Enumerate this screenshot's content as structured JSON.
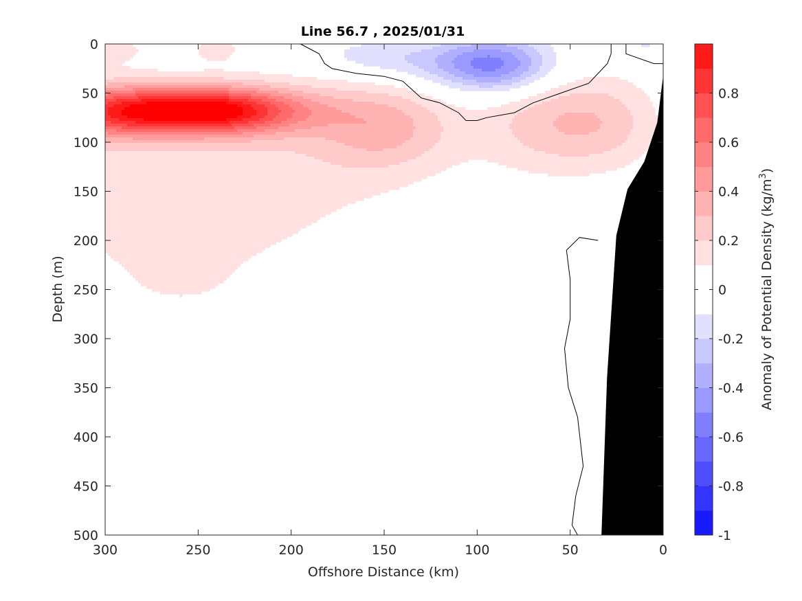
{
  "chart_data": {
    "type": "contour",
    "title": "Line 56.7 , 2025/01/31",
    "xlabel": "Offshore Distance (km)",
    "ylabel": "Depth (m)",
    "colorbar_label": "Anomaly of Potential Density (kg/m",
    "colorbar_label_sup": "3",
    "colorbar_label_close": ")",
    "xlim": [
      300,
      0
    ],
    "ylim": [
      500,
      0
    ],
    "x_reversed": true,
    "y_reversed": true,
    "x_ticks": [
      300,
      250,
      200,
      150,
      100,
      50,
      0
    ],
    "y_ticks": [
      0,
      50,
      100,
      150,
      200,
      250,
      300,
      350,
      400,
      450,
      500
    ],
    "colorbar_ticks": [
      0.8,
      0.6,
      0.4,
      0.2,
      0,
      -0.2,
      -0.4,
      -0.6,
      -0.8,
      -1
    ],
    "colorbar_range": [
      -1,
      1
    ],
    "colorbar_step": 0.1,
    "colormap": {
      "positive": [
        {
          "level": 0.1,
          "color": "#ffe1e1"
        },
        {
          "level": 0.2,
          "color": "#ffcaca"
        },
        {
          "level": 0.3,
          "color": "#ffb3b3"
        },
        {
          "level": 0.4,
          "color": "#ff9b9b"
        },
        {
          "level": 0.5,
          "color": "#ff8383"
        },
        {
          "level": 0.6,
          "color": "#ff6a6a"
        },
        {
          "level": 0.7,
          "color": "#ff5151"
        },
        {
          "level": 0.8,
          "color": "#ff3535"
        },
        {
          "level": 0.9,
          "color": "#ff1a1a"
        },
        {
          "level": 1.0,
          "color": "#ff0000"
        }
      ],
      "negative": [
        {
          "level": -0.1,
          "color": "#e1e1ff"
        },
        {
          "level": -0.2,
          "color": "#c8c8ff"
        },
        {
          "level": -0.3,
          "color": "#b0b0ff"
        },
        {
          "level": -0.4,
          "color": "#9999ff"
        },
        {
          "level": -0.5,
          "color": "#8080ff"
        },
        {
          "level": -0.6,
          "color": "#6868ff"
        },
        {
          "level": -0.7,
          "color": "#4e4eff"
        },
        {
          "level": -0.8,
          "color": "#3434ff"
        },
        {
          "level": -0.9,
          "color": "#1a1aff"
        },
        {
          "level": -1.0,
          "color": "#0000ff"
        }
      ]
    },
    "positive_anomaly_core": {
      "x_range": [
        300,
        200
      ],
      "depth_range": [
        50,
        90
      ],
      "max_anomaly": 1.0
    },
    "positive_anomaly_nearshore": {
      "x_range": [
        70,
        30
      ],
      "depth_range": [
        30,
        110
      ],
      "max_anomaly": 0.3
    },
    "negative_anomaly_core": {
      "x_range": [
        130,
        60
      ],
      "depth_range": [
        0,
        50
      ],
      "min_anomaly": -0.4
    },
    "zero_contour_upper": [
      [
        195,
        0
      ],
      [
        185,
        10
      ],
      [
        182,
        20
      ],
      [
        178,
        25
      ],
      [
        165,
        30
      ],
      [
        150,
        33
      ],
      [
        140,
        38
      ],
      [
        130,
        55
      ],
      [
        120,
        60
      ],
      [
        110,
        70
      ],
      [
        106,
        78
      ],
      [
        100,
        78
      ],
      [
        95,
        75
      ],
      [
        80,
        70
      ],
      [
        70,
        60
      ],
      [
        55,
        50
      ],
      [
        40,
        40
      ],
      [
        35,
        30
      ],
      [
        30,
        20
      ],
      [
        28,
        10
      ],
      [
        28,
        0
      ]
    ],
    "zero_contour_coast": [
      [
        20,
        0
      ],
      [
        20,
        10
      ],
      [
        5,
        20
      ],
      [
        0,
        20
      ]
    ],
    "zero_contour_deep": [
      [
        35,
        200
      ],
      [
        45,
        197
      ],
      [
        52,
        210
      ],
      [
        50,
        240
      ],
      [
        50,
        280
      ],
      [
        53,
        310
      ],
      [
        51,
        350
      ],
      [
        46,
        380
      ],
      [
        43,
        430
      ],
      [
        47,
        460
      ],
      [
        49,
        490
      ],
      [
        46,
        500
      ]
    ],
    "bathymetry": [
      [
        33,
        500
      ],
      [
        30,
        340
      ],
      [
        25,
        195
      ],
      [
        19,
        148
      ],
      [
        10,
        120
      ],
      [
        3,
        80
      ],
      [
        0,
        35
      ],
      [
        0,
        500
      ]
    ]
  }
}
